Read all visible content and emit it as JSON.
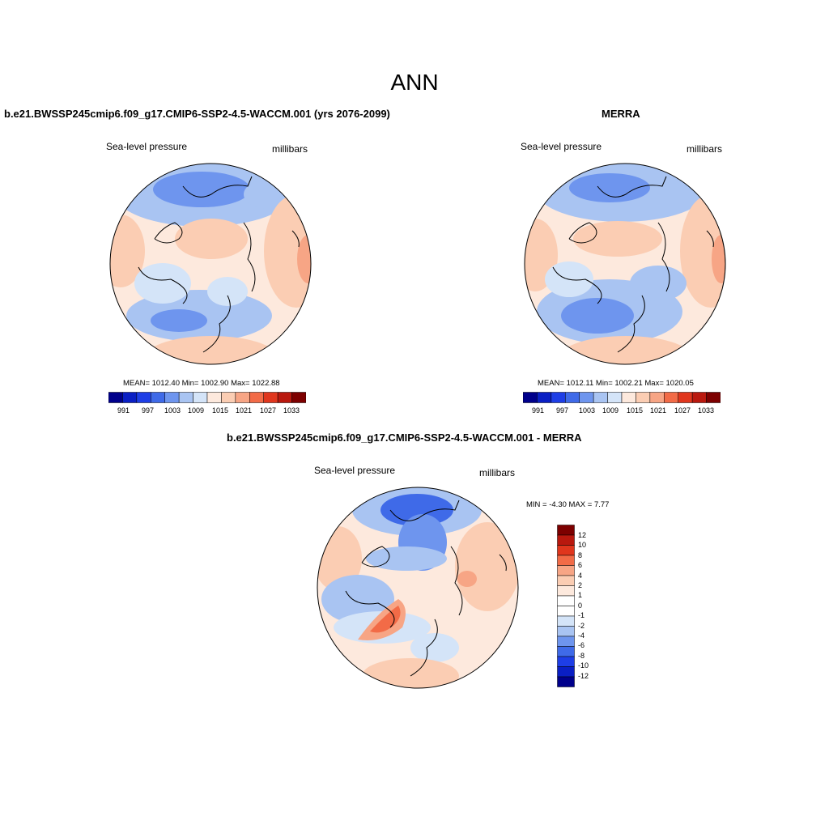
{
  "figure": {
    "title": "ANN",
    "colors": {
      "palette": [
        "#00008b",
        "#0a1fc4",
        "#1e3ee6",
        "#3f6ae8",
        "#6e95ee",
        "#a9c4f2",
        "#d4e4f8",
        "#fde9dd",
        "#fbcdb3",
        "#f7a585",
        "#f26b47",
        "#e0361d",
        "#b9180e",
        "#7d0000"
      ]
    },
    "panels": [
      {
        "id": "model",
        "title": "b.e21.BWSSP245cmip6.f09_g17.CMIP6-SSP2-4.5-WACCM.001 (yrs 2076-2099)",
        "variable": "Sea-level pressure",
        "units": "millibars",
        "stats": "MEAN= 1012.40  Min= 1002.90  Max= 1022.88",
        "mean": 1012.4,
        "min": 1002.9,
        "max": 1022.88,
        "colorbar_labels": [
          "991",
          "997",
          "1003",
          "1009",
          "1015",
          "1021",
          "1027",
          "1033"
        ]
      },
      {
        "id": "obs",
        "title": "MERRA",
        "variable": "Sea-level pressure",
        "units": "millibars",
        "stats": "MEAN= 1012.11  Min= 1002.21  Max= 1020.05",
        "mean": 1012.11,
        "min": 1002.21,
        "max": 1020.05,
        "colorbar_labels": [
          "991",
          "997",
          "1003",
          "1009",
          "1015",
          "1021",
          "1027",
          "1033"
        ]
      },
      {
        "id": "diff",
        "title": "b.e21.BWSSP245cmip6.f09_g17.CMIP6-SSP2-4.5-WACCM.001 - MERRA",
        "variable": "Sea-level pressure",
        "units": "millibars",
        "stats": "MIN =  -4.30 MAX =   7.77",
        "min": -4.3,
        "max": 7.77,
        "colorbar_labels": [
          "12",
          "10",
          "8",
          "6",
          "4",
          "2",
          "1",
          "0",
          "-1",
          "-2",
          "-4",
          "-6",
          "-8",
          "-10",
          "-12"
        ]
      }
    ]
  }
}
